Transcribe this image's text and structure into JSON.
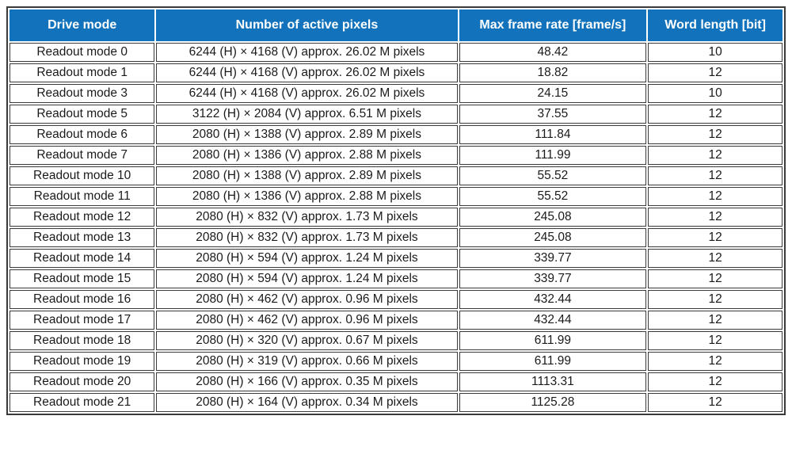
{
  "colors": {
    "header_bg": "#1272BC",
    "header_text": "#ffffff",
    "border": "#3a3a3a",
    "cell_text": "#1a1a1a",
    "page_bg": "#ffffff"
  },
  "table": {
    "headers": [
      "Drive mode",
      "Number of active pixels",
      "Max frame rate [frame/s]",
      "Word length [bit]"
    ],
    "rows": [
      {
        "drive_mode": "Readout mode 0",
        "active_pixels": "6244 (H) × 4168 (V) approx. 26.02 M pixels",
        "max_frame_rate": "48.42",
        "word_length": "10"
      },
      {
        "drive_mode": "Readout mode 1",
        "active_pixels": "6244 (H) × 4168 (V) approx. 26.02 M pixels",
        "max_frame_rate": "18.82",
        "word_length": "12"
      },
      {
        "drive_mode": "Readout mode 3",
        "active_pixels": "6244 (H) × 4168 (V) approx. 26.02 M pixels",
        "max_frame_rate": "24.15",
        "word_length": "10"
      },
      {
        "drive_mode": "Readout mode 5",
        "active_pixels": "3122 (H) × 2084 (V) approx. 6.51 M pixels",
        "max_frame_rate": "37.55",
        "word_length": "12"
      },
      {
        "drive_mode": "Readout mode 6",
        "active_pixels": "2080 (H) × 1388 (V) approx. 2.89 M pixels",
        "max_frame_rate": "111.84",
        "word_length": "12"
      },
      {
        "drive_mode": "Readout mode 7",
        "active_pixels": "2080 (H) × 1386 (V) approx. 2.88 M pixels",
        "max_frame_rate": "111.99",
        "word_length": "12"
      },
      {
        "drive_mode": "Readout mode 10",
        "active_pixels": "2080 (H) × 1388 (V) approx. 2.89 M pixels",
        "max_frame_rate": "55.52",
        "word_length": "12"
      },
      {
        "drive_mode": "Readout mode 11",
        "active_pixels": "2080 (H) × 1386 (V) approx. 2.88 M pixels",
        "max_frame_rate": "55.52",
        "word_length": "12"
      },
      {
        "drive_mode": "Readout mode 12",
        "active_pixels": "2080 (H) × 832 (V) approx. 1.73 M pixels",
        "max_frame_rate": "245.08",
        "word_length": "12"
      },
      {
        "drive_mode": "Readout mode 13",
        "active_pixels": "2080 (H) × 832 (V) approx. 1.73 M pixels",
        "max_frame_rate": "245.08",
        "word_length": "12"
      },
      {
        "drive_mode": "Readout mode 14",
        "active_pixels": "2080 (H) × 594 (V) approx. 1.24 M pixels",
        "max_frame_rate": "339.77",
        "word_length": "12"
      },
      {
        "drive_mode": "Readout mode 15",
        "active_pixels": "2080 (H) × 594 (V) approx. 1.24 M pixels",
        "max_frame_rate": "339.77",
        "word_length": "12"
      },
      {
        "drive_mode": "Readout mode 16",
        "active_pixels": "2080 (H) × 462 (V) approx. 0.96 M pixels",
        "max_frame_rate": "432.44",
        "word_length": "12"
      },
      {
        "drive_mode": "Readout mode 17",
        "active_pixels": "2080 (H) × 462 (V) approx. 0.96 M pixels",
        "max_frame_rate": "432.44",
        "word_length": "12"
      },
      {
        "drive_mode": "Readout mode 18",
        "active_pixels": "2080 (H) × 320 (V) approx. 0.67 M pixels",
        "max_frame_rate": "611.99",
        "word_length": "12"
      },
      {
        "drive_mode": "Readout mode 19",
        "active_pixels": "2080 (H) × 319 (V) approx. 0.66 M pixels",
        "max_frame_rate": "611.99",
        "word_length": "12"
      },
      {
        "drive_mode": "Readout mode 20",
        "active_pixels": "2080 (H) × 166 (V) approx. 0.35 M pixels",
        "max_frame_rate": "1113.31",
        "word_length": "12"
      },
      {
        "drive_mode": "Readout mode 21",
        "active_pixels": "2080 (H) × 164 (V) approx. 0.34 M pixels",
        "max_frame_rate": "1125.28",
        "word_length": "12"
      }
    ]
  }
}
